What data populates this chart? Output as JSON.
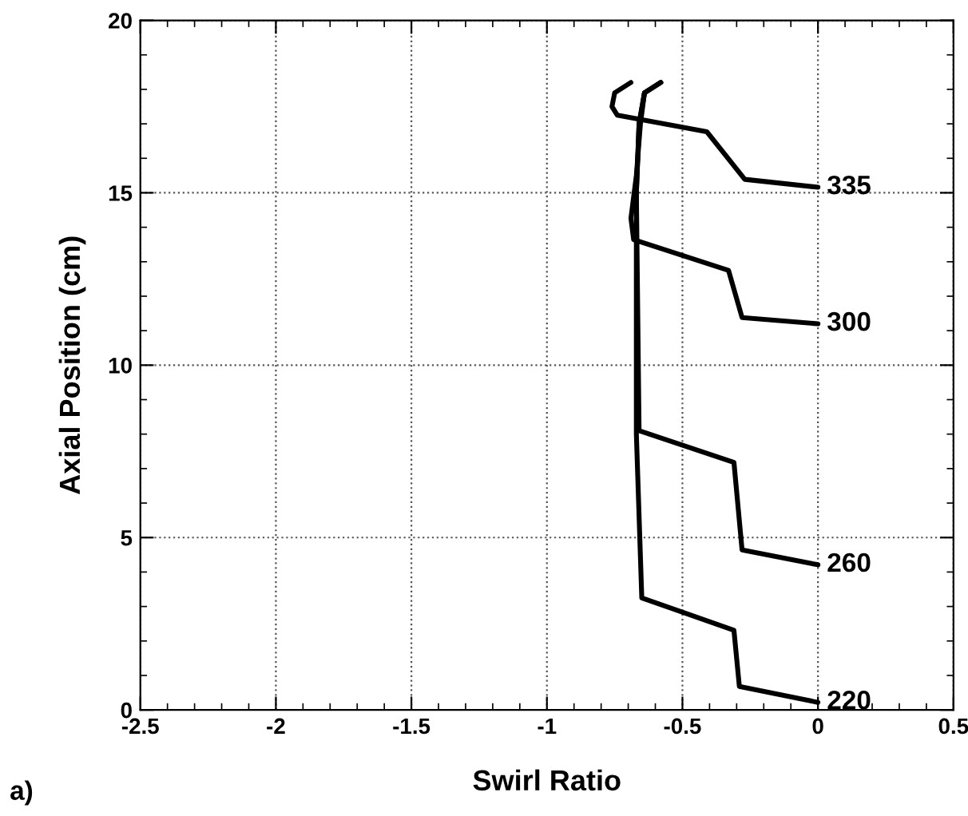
{
  "chart_data": {
    "type": "line",
    "xlabel": "Swirl Ratio",
    "ylabel": "Axial Position (cm)",
    "annotations": [
      "a)"
    ],
    "xlim": [
      -2.5,
      0.5
    ],
    "ylim": [
      0,
      20
    ],
    "xticks": [
      -2.5,
      -2,
      -1.5,
      -1,
      -0.5,
      0,
      0.5
    ],
    "yticks": [
      0,
      5,
      10,
      15,
      20
    ],
    "grid": true,
    "marker": "none",
    "line_style": "solid",
    "series": [
      {
        "name": "220",
        "color": "#000000",
        "x": [
          0,
          -0.29,
          -0.31,
          -0.65,
          -0.67,
          -0.67,
          -0.66,
          -0.64,
          -0.58
        ],
        "values": [
          0.22,
          0.68,
          2.31,
          3.25,
          8,
          15,
          17,
          17.9,
          18.2
        ]
      },
      {
        "name": "260",
        "color": "#000000",
        "x": [
          0,
          -0.28,
          -0.31,
          -0.66,
          -0.67,
          -0.66,
          -0.64,
          -0.58
        ],
        "values": [
          4.21,
          4.64,
          7.18,
          8.1,
          15,
          17,
          17.9,
          18.2
        ]
      },
      {
        "name": "300",
        "color": "#000000",
        "x": [
          0,
          -0.28,
          -0.33,
          -0.68,
          -0.69,
          -0.67,
          -0.655,
          -0.64,
          -0.58
        ],
        "values": [
          11.2,
          11.38,
          12.75,
          13.64,
          14.26,
          15.5,
          17,
          17.9,
          18.2
        ]
      },
      {
        "name": "335",
        "color": "#000000",
        "x": [
          0,
          -0.27,
          -0.41,
          -0.74,
          -0.76,
          -0.75,
          -0.69
        ],
        "values": [
          15.16,
          15.39,
          16.77,
          17.25,
          17.5,
          17.9,
          18.2
        ]
      }
    ]
  }
}
